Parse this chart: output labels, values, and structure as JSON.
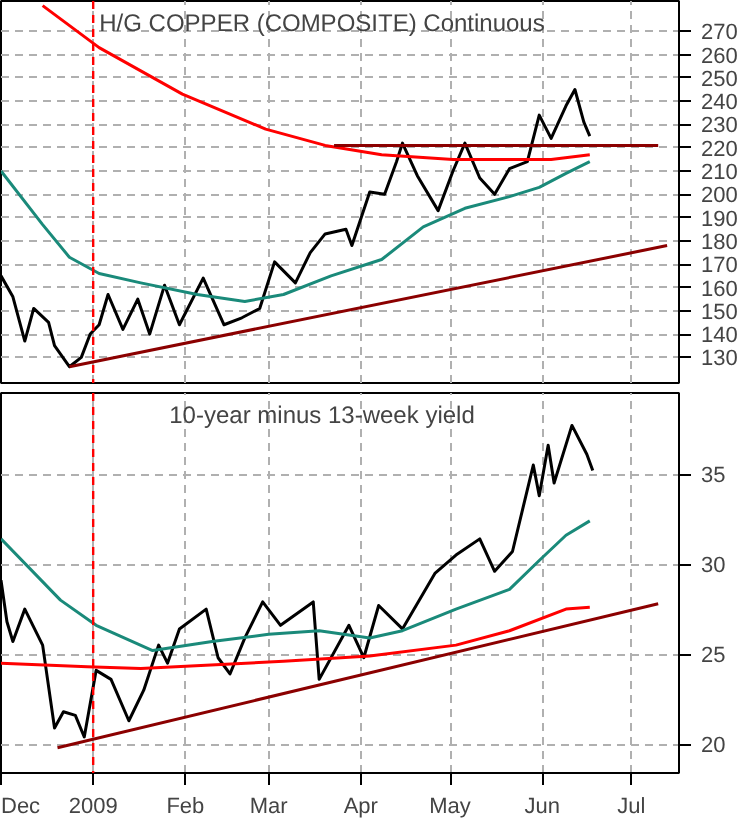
{
  "chart_data": [
    {
      "type": "line",
      "title": "H/G COPPER (COMPOSITE) Continuous",
      "xlim": [
        "2008-12-01",
        "2009-07-17"
      ],
      "ylim": [
        119,
        283
      ],
      "yticks": [
        130,
        140,
        150,
        160,
        170,
        180,
        190,
        200,
        210,
        220,
        230,
        240,
        250,
        260,
        270
      ],
      "xticks": [
        {
          "value": "2008-12-01",
          "label": null
        },
        {
          "value": "2009-01-01",
          "label": null
        },
        {
          "value": "2009-02-01",
          "label": null
        },
        {
          "value": "2009-03-01",
          "label": null
        },
        {
          "value": "2009-04-01",
          "label": null
        },
        {
          "value": "2009-05-01",
          "label": null
        },
        {
          "value": "2009-06-01",
          "label": null
        },
        {
          "value": "2009-07-01",
          "label": null
        }
      ],
      "tick_labels": "y",
      "grid": true,
      "ref_lines": [
        {
          "axis": "x",
          "value": "2009-01-01",
          "color": "#ff0000",
          "line_style": "dashed"
        }
      ],
      "series": [
        {
          "color": "#000000",
          "x": [
            "2008-12-01",
            "2008-12-05",
            "2008-12-09",
            "2008-12-12",
            "2008-12-17",
            "2008-12-19",
            "2008-12-24",
            "2008-12-28",
            "2008-12-31",
            "2009-01-03",
            "2009-01-06",
            "2009-01-11",
            "2009-01-16",
            "2009-01-20",
            "2009-01-25",
            "2009-01-30",
            "2009-02-07",
            "2009-02-14",
            "2009-02-20",
            "2009-02-26",
            "2009-03-03",
            "2009-03-10",
            "2009-03-15",
            "2009-03-20",
            "2009-03-27",
            "2009-03-29",
            "2009-04-04",
            "2009-04-09",
            "2009-04-13",
            "2009-04-15",
            "2009-04-20",
            "2009-04-27",
            "2009-05-02",
            "2009-05-06",
            "2009-05-11",
            "2009-05-16",
            "2009-05-21",
            "2009-05-27",
            "2009-05-31",
            "2009-06-04",
            "2009-06-09",
            "2009-06-12",
            "2009-06-15",
            "2009-06-17"
          ],
          "values": [
            165,
            156,
            137,
            151,
            145,
            135,
            126,
            130,
            140,
            144,
            157,
            142,
            155,
            140,
            161,
            144,
            164,
            144,
            147,
            151,
            171,
            162,
            175,
            183,
            185,
            178,
            201,
            200,
            214,
            222,
            208,
            193,
            210,
            222,
            207,
            200,
            211,
            214,
            234,
            224,
            238,
            245,
            231,
            225
          ]
        },
        {
          "color": "#1a8a7a",
          "x": [
            "2008-12-01",
            "2008-12-15",
            "2008-12-24",
            "2009-01-03",
            "2009-01-17",
            "2009-02-05",
            "2009-02-21",
            "2009-03-06",
            "2009-03-22",
            "2009-04-08",
            "2009-04-22",
            "2009-05-06",
            "2009-05-21",
            "2009-05-31",
            "2009-06-09",
            "2009-06-17"
          ],
          "values": [
            210,
            187,
            173,
            166,
            162,
            157,
            154,
            157,
            165,
            172,
            186,
            194,
            199,
            203,
            209,
            214
          ]
        },
        {
          "color": "#ff0000",
          "x": [
            "2008-12-15",
            "2009-01-03",
            "2009-01-31",
            "2009-02-28",
            "2009-03-20",
            "2009-04-08",
            "2009-05-02",
            "2009-05-21",
            "2009-06-04",
            "2009-06-17"
          ],
          "values": [
            281,
            263,
            243,
            228,
            221,
            217,
            215,
            215,
            215,
            217
          ]
        },
        {
          "color": "#8b0000",
          "x": [
            "2008-12-24",
            "2009-07-13"
          ],
          "values": [
            126,
            178
          ]
        },
        {
          "color": "#8b0000",
          "x": [
            "2009-03-23",
            "2009-07-10"
          ],
          "values": [
            221,
            221
          ]
        }
      ]
    },
    {
      "type": "line",
      "title": "10-year minus 13-week yield",
      "xlim": [
        "2008-12-01",
        "2009-07-17"
      ],
      "ylim": [
        18.4,
        39.5
      ],
      "yticks": [
        20,
        25,
        30,
        35
      ],
      "xticks": [
        {
          "value": "2008-12-01",
          "label": "Dec"
        },
        {
          "value": "2009-01-01",
          "label": "2009"
        },
        {
          "value": "2009-02-01",
          "label": "Feb"
        },
        {
          "value": "2009-03-01",
          "label": "Mar"
        },
        {
          "value": "2009-04-01",
          "label": "Apr"
        },
        {
          "value": "2009-05-01",
          "label": "May"
        },
        {
          "value": "2009-06-01",
          "label": "Jun"
        },
        {
          "value": "2009-07-01",
          "label": "Jul"
        }
      ],
      "grid": true,
      "ref_lines": [
        {
          "axis": "x",
          "value": "2009-01-01",
          "color": "#ff0000",
          "line_style": "dashed"
        }
      ],
      "series": [
        {
          "color": "#000000",
          "x": [
            "2008-12-01",
            "2008-12-03",
            "2008-12-05",
            "2008-12-09",
            "2008-12-15",
            "2008-12-19",
            "2008-12-22",
            "2008-12-26",
            "2008-12-29",
            "2009-01-02",
            "2009-01-07",
            "2009-01-13",
            "2009-01-18",
            "2009-01-23",
            "2009-01-26",
            "2009-01-30",
            "2009-02-08",
            "2009-02-12",
            "2009-02-16",
            "2009-02-21",
            "2009-02-27",
            "2009-03-05",
            "2009-03-16",
            "2009-03-18",
            "2009-03-28",
            "2009-04-02",
            "2009-04-07",
            "2009-04-15",
            "2009-04-26",
            "2009-05-03",
            "2009-05-11",
            "2009-05-16",
            "2009-05-22",
            "2009-05-29",
            "2009-05-31",
            "2009-06-03",
            "2009-06-05",
            "2009-06-11",
            "2009-06-16",
            "2009-06-18"
          ],
          "values": [
            29.1,
            26.8,
            25.7,
            27.5,
            25.5,
            20.9,
            21.8,
            21.6,
            20.4,
            24.1,
            23.6,
            21.3,
            23.0,
            25.5,
            24.5,
            26.4,
            27.5,
            24.8,
            23.9,
            25.9,
            27.9,
            26.6,
            27.9,
            23.6,
            26.6,
            24.8,
            27.7,
            26.4,
            29.5,
            30.5,
            31.4,
            29.6,
            30.7,
            35.5,
            33.8,
            36.6,
            34.5,
            37.7,
            36.1,
            35.2
          ]
        },
        {
          "color": "#1a8a7a",
          "x": [
            "2008-12-01",
            "2008-12-21",
            "2009-01-02",
            "2009-01-21",
            "2009-02-10",
            "2009-03-01",
            "2009-03-18",
            "2009-04-04",
            "2009-04-15",
            "2009-05-03",
            "2009-05-21",
            "2009-05-31",
            "2009-06-09",
            "2009-06-17"
          ],
          "values": [
            31.4,
            28.0,
            26.6,
            25.2,
            25.7,
            26.1,
            26.3,
            25.9,
            26.3,
            27.5,
            28.6,
            30.2,
            31.6,
            32.4
          ]
        },
        {
          "color": "#ff0000",
          "x": [
            "2008-12-01",
            "2008-12-30",
            "2009-01-17",
            "2009-03-06",
            "2009-04-04",
            "2009-05-03",
            "2009-05-21",
            "2009-06-09",
            "2009-06-17"
          ],
          "values": [
            24.5,
            24.3,
            24.2,
            24.6,
            24.9,
            25.5,
            26.3,
            27.5,
            27.6
          ]
        },
        {
          "color": "#8b0000",
          "x": [
            "2008-12-20",
            "2009-07-10"
          ],
          "values": [
            19.8,
            27.8
          ]
        }
      ]
    }
  ]
}
